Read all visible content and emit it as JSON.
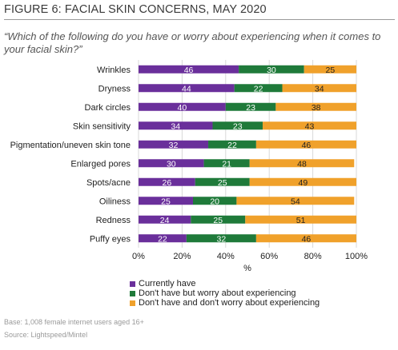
{
  "title": "FIGURE 6: FACIAL SKIN CONCERNS, MAY 2020",
  "question": "“Which of the following do you have or worry about experiencing when it comes to your facial skin?”",
  "colors": {
    "currently_have": "#6a2f9b",
    "worry": "#1f7a3a",
    "dont_worry": "#f0a12b"
  },
  "footnotes": {
    "base": "Base: 1,008 female internet users aged 16+",
    "source": "Source: Lightspeed/Mintel"
  },
  "chart_data": {
    "type": "bar",
    "orientation": "horizontal",
    "stacked": true,
    "categories": [
      "Wrinkles",
      "Dryness",
      "Dark circles",
      "Skin sensitivity",
      "Pigmentation/uneven skin tone",
      "Enlarged pores",
      "Spots/acne",
      "Oiliness",
      "Redness",
      "Puffy eyes"
    ],
    "series": [
      {
        "name": "Currently have",
        "values": [
          46,
          44,
          40,
          34,
          32,
          30,
          26,
          25,
          24,
          22
        ]
      },
      {
        "name": "Don't have but worry about experiencing",
        "values": [
          30,
          22,
          23,
          23,
          22,
          21,
          25,
          20,
          25,
          32
        ]
      },
      {
        "name": "Don't have and don't worry about experiencing",
        "values": [
          25,
          34,
          38,
          43,
          46,
          48,
          49,
          54,
          51,
          46
        ]
      }
    ],
    "xlabel": "%",
    "xlim": [
      0,
      100
    ],
    "xticks": [
      "0%",
      "20%",
      "40%",
      "60%",
      "80%",
      "100%"
    ],
    "grid": true,
    "legend_position": "bottom"
  }
}
